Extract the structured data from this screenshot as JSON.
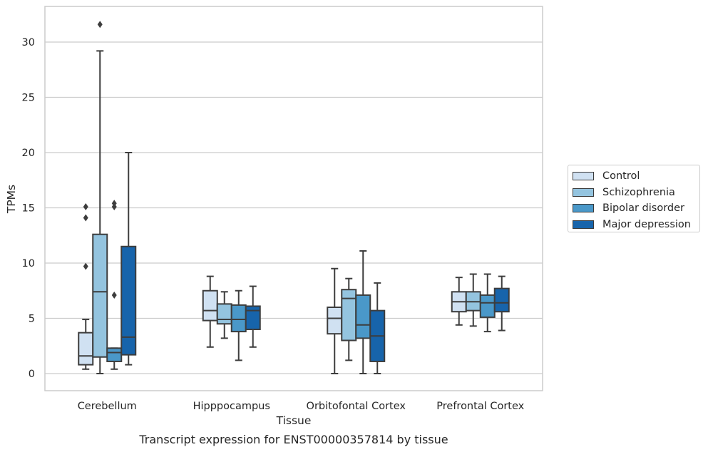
{
  "chart_data": {
    "type": "box",
    "caption": "Transcript expression for ENST00000357814 by tissue",
    "xlabel": "Tissue",
    "ylabel": "TPMs",
    "ylim": [
      -1.5,
      33
    ],
    "yticks": [
      0,
      5,
      10,
      15,
      20,
      25,
      30
    ],
    "grid": true,
    "legend_position": "right",
    "categories": [
      "Cerebellum",
      "Hipppocampus",
      "Orbitofontal Cortex",
      "Prefrontal Cortex"
    ],
    "series": [
      {
        "name": "Control",
        "color": "#d0e1f2",
        "boxes": [
          {
            "whislo": 0.4,
            "q1": 0.8,
            "med": 1.6,
            "q3": 3.7,
            "whishi": 4.9,
            "fliers": [
              9.7,
              14.1,
              15.1
            ]
          },
          {
            "whislo": 2.4,
            "q1": 4.8,
            "med": 5.7,
            "q3": 7.5,
            "whishi": 8.8,
            "fliers": []
          },
          {
            "whislo": 0.0,
            "q1": 3.6,
            "med": 5.0,
            "q3": 6.0,
            "whishi": 9.5,
            "fliers": []
          },
          {
            "whislo": 4.4,
            "q1": 5.6,
            "med": 6.5,
            "q3": 7.4,
            "whishi": 8.7,
            "fliers": []
          }
        ]
      },
      {
        "name": "Schizophrenia",
        "color": "#94c4df",
        "boxes": [
          {
            "whislo": 0.0,
            "q1": 1.5,
            "med": 7.4,
            "q3": 12.6,
            "whishi": 29.2,
            "fliers": [
              31.6
            ]
          },
          {
            "whislo": 3.2,
            "q1": 4.5,
            "med": 4.9,
            "q3": 6.3,
            "whishi": 7.4,
            "fliers": []
          },
          {
            "whislo": 1.2,
            "q1": 3.0,
            "med": 6.8,
            "q3": 7.6,
            "whishi": 8.6,
            "fliers": []
          },
          {
            "whislo": 4.3,
            "q1": 5.7,
            "med": 6.5,
            "q3": 7.4,
            "whishi": 9.0,
            "fliers": []
          }
        ]
      },
      {
        "name": "Bipolar disorder",
        "color": "#4a98c9",
        "boxes": [
          {
            "whislo": 0.4,
            "q1": 1.1,
            "med": 1.9,
            "q3": 2.3,
            "whishi": 2.3,
            "fliers": [
              7.1,
              15.1,
              15.4
            ]
          },
          {
            "whislo": 1.2,
            "q1": 3.8,
            "med": 4.9,
            "q3": 6.2,
            "whishi": 7.5,
            "fliers": []
          },
          {
            "whislo": 0.0,
            "q1": 3.2,
            "med": 4.4,
            "q3": 7.1,
            "whishi": 11.1,
            "fliers": []
          },
          {
            "whislo": 3.8,
            "q1": 5.1,
            "med": 6.4,
            "q3": 7.1,
            "whishi": 9.0,
            "fliers": []
          }
        ]
      },
      {
        "name": "Major depression",
        "color": "#1764ab",
        "boxes": [
          {
            "whislo": 0.8,
            "q1": 1.7,
            "med": 3.3,
            "q3": 11.5,
            "whishi": 20.0,
            "fliers": []
          },
          {
            "whislo": 2.4,
            "q1": 4.0,
            "med": 5.7,
            "q3": 6.1,
            "whishi": 7.9,
            "fliers": []
          },
          {
            "whislo": 0.0,
            "q1": 1.1,
            "med": 3.4,
            "q3": 5.7,
            "whishi": 8.2,
            "fliers": []
          },
          {
            "whislo": 3.9,
            "q1": 5.6,
            "med": 6.4,
            "q3": 7.7,
            "whishi": 8.8,
            "fliers": []
          }
        ]
      }
    ]
  }
}
